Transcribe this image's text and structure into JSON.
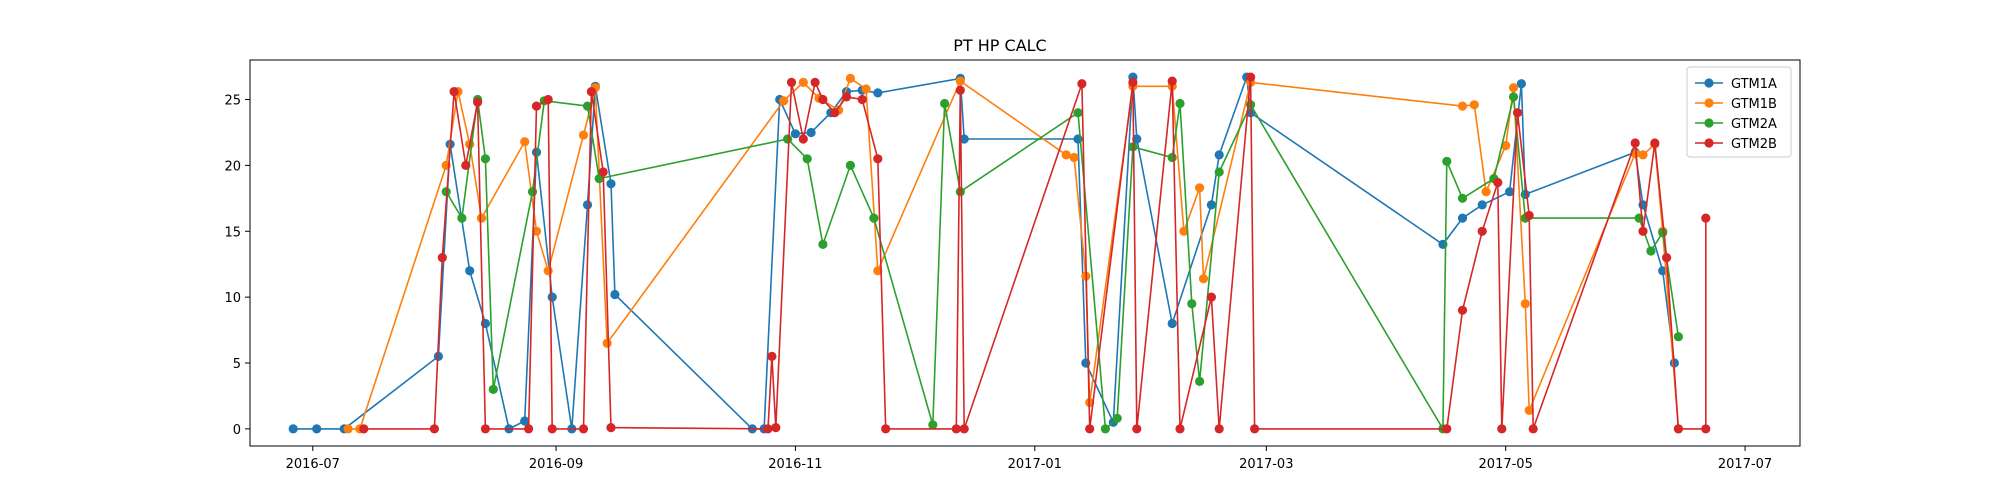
{
  "chart_data": {
    "type": "line",
    "title": "PT HP CALC",
    "xlabel": "",
    "ylabel": "",
    "x_axis": "date",
    "xlim": [
      "2016-06-15",
      "2017-07-15"
    ],
    "ylim": [
      -1.3,
      28.0
    ],
    "x_ticks": [
      "2016-07-01",
      "2016-09-01",
      "2016-11-01",
      "2017-01-01",
      "2017-03-01",
      "2017-05-01",
      "2017-07-01"
    ],
    "x_tick_labels": [
      "2016-07",
      "2016-09",
      "2016-11",
      "2017-01",
      "2017-03",
      "2017-05",
      "2017-07"
    ],
    "y_ticks": [
      0,
      5,
      10,
      15,
      20,
      25
    ],
    "y_tick_labels": [
      "0",
      "5",
      "10",
      "15",
      "20",
      "25"
    ],
    "grid": false,
    "legend_position": "top-right",
    "marker": "circle",
    "series": [
      {
        "name": "GTM1A",
        "color": "#1f77b4",
        "points": [
          [
            "2016-06-26",
            0.0
          ],
          [
            "2016-07-02",
            0.0
          ],
          [
            "2016-07-09",
            0.0
          ],
          [
            "2016-08-02",
            5.5
          ],
          [
            "2016-08-05",
            21.6
          ],
          [
            "2016-08-10",
            12.0
          ],
          [
            "2016-08-14",
            8.0
          ],
          [
            "2016-08-20",
            0.0
          ],
          [
            "2016-08-24",
            0.6
          ],
          [
            "2016-08-27",
            21.0
          ],
          [
            "2016-08-31",
            10.0
          ],
          [
            "2016-09-05",
            0.0
          ],
          [
            "2016-09-09",
            17.0
          ],
          [
            "2016-09-11",
            26.0
          ],
          [
            "2016-09-15",
            18.6
          ],
          [
            "2016-09-16",
            10.2
          ],
          [
            "2016-10-21",
            0.0
          ],
          [
            "2016-10-24",
            0.0
          ],
          [
            "2016-10-28",
            25.0
          ],
          [
            "2016-11-01",
            22.4
          ],
          [
            "2016-11-05",
            22.5
          ],
          [
            "2016-11-10",
            24.0
          ],
          [
            "2016-11-14",
            25.6
          ],
          [
            "2016-11-18",
            25.7
          ],
          [
            "2016-11-22",
            25.5
          ],
          [
            "2016-12-13",
            26.6
          ],
          [
            "2016-12-14",
            22.0
          ],
          [
            "2017-01-12",
            22.0
          ],
          [
            "2017-01-14",
            5.0
          ],
          [
            "2017-01-21",
            0.5
          ],
          [
            "2017-01-26",
            26.7
          ],
          [
            "2017-01-27",
            22.0
          ],
          [
            "2017-02-05",
            8.0
          ],
          [
            "2017-02-15",
            17.0
          ],
          [
            "2017-02-17",
            20.8
          ],
          [
            "2017-02-24",
            26.7
          ],
          [
            "2017-02-25",
            24.0
          ],
          [
            "2017-04-15",
            14.0
          ],
          [
            "2017-04-20",
            16.0
          ],
          [
            "2017-04-25",
            17.0
          ],
          [
            "2017-05-02",
            18.0
          ],
          [
            "2017-05-05",
            26.2
          ],
          [
            "2017-05-06",
            17.8
          ],
          [
            "2017-06-03",
            21.0
          ],
          [
            "2017-06-05",
            17.0
          ],
          [
            "2017-06-10",
            12.0
          ],
          [
            "2017-06-13",
            5.0
          ]
        ]
      },
      {
        "name": "GTM1B",
        "color": "#ff7f0e",
        "points": [
          [
            "2016-07-10",
            0.0
          ],
          [
            "2016-07-13",
            0.0
          ],
          [
            "2016-08-04",
            20.0
          ],
          [
            "2016-08-07",
            25.6
          ],
          [
            "2016-08-10",
            21.6
          ],
          [
            "2016-08-13",
            16.0
          ],
          [
            "2016-08-24",
            21.8
          ],
          [
            "2016-08-27",
            15.0
          ],
          [
            "2016-08-30",
            12.0
          ],
          [
            "2016-09-08",
            22.3
          ],
          [
            "2016-09-11",
            25.9
          ],
          [
            "2016-09-14",
            6.5
          ],
          [
            "2016-10-29",
            24.9
          ],
          [
            "2016-11-03",
            26.3
          ],
          [
            "2016-11-07",
            25.1
          ],
          [
            "2016-11-12",
            24.2
          ],
          [
            "2016-11-15",
            26.6
          ],
          [
            "2016-11-19",
            25.8
          ],
          [
            "2016-11-22",
            12.0
          ],
          [
            "2016-12-13",
            26.4
          ],
          [
            "2017-01-09",
            20.8
          ],
          [
            "2017-01-11",
            20.6
          ],
          [
            "2017-01-14",
            11.6
          ],
          [
            "2017-01-15",
            2.0
          ],
          [
            "2017-01-26",
            26.0
          ],
          [
            "2017-02-05",
            26.0
          ],
          [
            "2017-02-08",
            15.0
          ],
          [
            "2017-02-12",
            18.3
          ],
          [
            "2017-02-13",
            11.4
          ],
          [
            "2017-02-25",
            26.3
          ],
          [
            "2017-04-20",
            24.5
          ],
          [
            "2017-04-23",
            24.6
          ],
          [
            "2017-04-26",
            18.0
          ],
          [
            "2017-05-01",
            21.5
          ],
          [
            "2017-05-03",
            25.9
          ],
          [
            "2017-05-06",
            9.5
          ],
          [
            "2017-05-07",
            1.4
          ],
          [
            "2017-06-03",
            20.9
          ],
          [
            "2017-06-05",
            20.8
          ],
          [
            "2017-06-08",
            21.6
          ],
          [
            "2017-06-10",
            15.0
          ],
          [
            "2017-06-14",
            0.0
          ]
        ]
      },
      {
        "name": "GTM2A",
        "color": "#2ca02c",
        "points": [
          [
            "2016-08-04",
            18.0
          ],
          [
            "2016-08-08",
            16.0
          ],
          [
            "2016-08-12",
            25.0
          ],
          [
            "2016-08-14",
            20.5
          ],
          [
            "2016-08-16",
            3.0
          ],
          [
            "2016-08-26",
            18.0
          ],
          [
            "2016-08-29",
            24.9
          ],
          [
            "2016-09-09",
            24.5
          ],
          [
            "2016-09-12",
            19.0
          ],
          [
            "2016-10-30",
            22.0
          ],
          [
            "2016-11-04",
            20.5
          ],
          [
            "2016-11-08",
            14.0
          ],
          [
            "2016-11-15",
            20.0
          ],
          [
            "2016-11-21",
            16.0
          ],
          [
            "2016-12-06",
            0.3
          ],
          [
            "2016-12-09",
            24.7
          ],
          [
            "2016-12-13",
            18.0
          ],
          [
            "2017-01-12",
            24.0
          ],
          [
            "2017-01-19",
            0.0
          ],
          [
            "2017-01-22",
            0.8
          ],
          [
            "2017-01-26",
            21.4
          ],
          [
            "2017-02-05",
            20.6
          ],
          [
            "2017-02-07",
            24.7
          ],
          [
            "2017-02-10",
            9.5
          ],
          [
            "2017-02-12",
            3.6
          ],
          [
            "2017-02-17",
            19.5
          ],
          [
            "2017-02-25",
            24.6
          ],
          [
            "2017-04-15",
            0.0
          ],
          [
            "2017-04-16",
            20.3
          ],
          [
            "2017-04-20",
            17.5
          ],
          [
            "2017-04-28",
            19.0
          ],
          [
            "2017-05-03",
            25.2
          ],
          [
            "2017-05-06",
            16.0
          ],
          [
            "2017-06-04",
            16.0
          ],
          [
            "2017-06-07",
            13.5
          ],
          [
            "2017-06-10",
            14.9
          ],
          [
            "2017-06-14",
            7.0
          ]
        ]
      },
      {
        "name": "GTM2B",
        "color": "#d62728",
        "points": [
          [
            "2016-07-14",
            0.0
          ],
          [
            "2016-08-01",
            0.0
          ],
          [
            "2016-08-03",
            13.0
          ],
          [
            "2016-08-06",
            25.6
          ],
          [
            "2016-08-09",
            20.0
          ],
          [
            "2016-08-12",
            24.8
          ],
          [
            "2016-08-14",
            0.0
          ],
          [
            "2016-08-25",
            0.0
          ],
          [
            "2016-08-27",
            24.5
          ],
          [
            "2016-08-30",
            25.0
          ],
          [
            "2016-08-31",
            0.0
          ],
          [
            "2016-09-08",
            0.0
          ],
          [
            "2016-09-10",
            25.6
          ],
          [
            "2016-09-13",
            19.5
          ],
          [
            "2016-09-15",
            0.1
          ],
          [
            "2016-10-25",
            0.0
          ],
          [
            "2016-10-26",
            5.5
          ],
          [
            "2016-10-27",
            0.1
          ],
          [
            "2016-10-31",
            26.3
          ],
          [
            "2016-11-03",
            22.0
          ],
          [
            "2016-11-06",
            26.3
          ],
          [
            "2016-11-08",
            25.0
          ],
          [
            "2016-11-11",
            24.0
          ],
          [
            "2016-11-14",
            25.2
          ],
          [
            "2016-11-18",
            25.0
          ],
          [
            "2016-11-22",
            20.5
          ],
          [
            "2016-11-24",
            0.0
          ],
          [
            "2016-12-12",
            0.0
          ],
          [
            "2016-12-13",
            25.7
          ],
          [
            "2016-12-14",
            0.0
          ],
          [
            "2017-01-13",
            26.2
          ],
          [
            "2017-01-15",
            0.0
          ],
          [
            "2017-01-26",
            26.3
          ],
          [
            "2017-01-27",
            0.0
          ],
          [
            "2017-02-05",
            26.4
          ],
          [
            "2017-02-07",
            0.0
          ],
          [
            "2017-02-15",
            10.0
          ],
          [
            "2017-02-17",
            0.0
          ],
          [
            "2017-02-25",
            26.7
          ],
          [
            "2017-02-26",
            0.0
          ],
          [
            "2017-04-16",
            0.0
          ],
          [
            "2017-04-20",
            9.0
          ],
          [
            "2017-04-25",
            15.0
          ],
          [
            "2017-04-29",
            18.7
          ],
          [
            "2017-04-30",
            0.0
          ],
          [
            "2017-05-04",
            24.0
          ],
          [
            "2017-05-07",
            16.2
          ],
          [
            "2017-05-08",
            0.0
          ],
          [
            "2017-06-03",
            21.7
          ],
          [
            "2017-06-05",
            15.0
          ],
          [
            "2017-06-08",
            21.7
          ],
          [
            "2017-06-11",
            13.0
          ],
          [
            "2017-06-14",
            0.0
          ],
          [
            "2017-06-21",
            0.0
          ],
          [
            "2017-06-21",
            16.0
          ]
        ]
      }
    ]
  }
}
